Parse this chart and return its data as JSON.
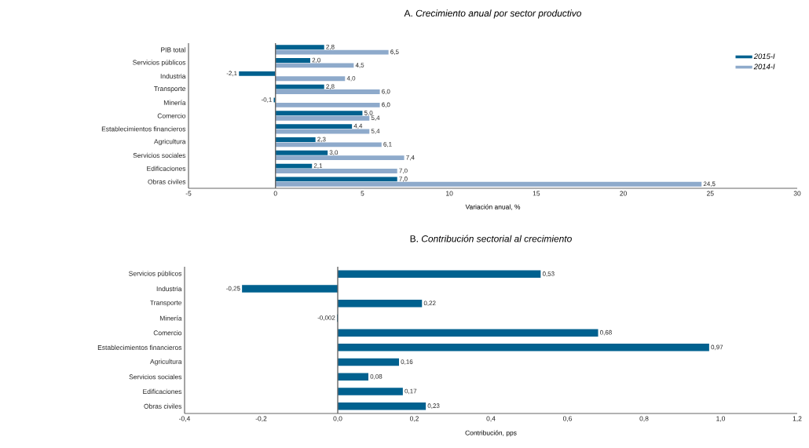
{
  "chart_data": [
    {
      "type": "bar",
      "orientation": "horizontal",
      "title": "A. *Crecimiento anual por sector productivo*",
      "xlabel": "Variación anual, %",
      "categories": [
        "PIB total",
        "Servicios públicos",
        "Industria",
        "Transporte",
        "Minería",
        "Comercio",
        "Establecimientos financieros",
        "Agricultura",
        "Servicios sociales",
        "Edificaciones",
        "Obras civiles"
      ],
      "series": [
        {
          "name": "2015-I",
          "color": "#00618f",
          "values": [
            2.8,
            2.0,
            -2.1,
            2.8,
            -0.1,
            5.0,
            4.4,
            2.3,
            3.0,
            2.1,
            7.0
          ],
          "value_labels": [
            "2,8",
            "2,0",
            "-2,1",
            "2,8",
            "-0,1",
            "5,0",
            "4,4",
            "2,3",
            "3,0",
            "2,1",
            "7,0"
          ]
        },
        {
          "name": "2014-I",
          "color": "#8eaacb",
          "values": [
            6.5,
            4.5,
            4.0,
            6.0,
            6.0,
            5.4,
            5.4,
            6.1,
            7.4,
            7.0,
            24.5
          ],
          "value_labels": [
            "6,5",
            "4,5",
            "4,0",
            "6,0",
            "6,0",
            "5,4",
            "5,4",
            "6,1",
            "7,4",
            "7,0",
            "24,5"
          ]
        }
      ],
      "xlim": [
        -5,
        30
      ],
      "xticks": [
        -5,
        0,
        5,
        10,
        15,
        20,
        25,
        30
      ],
      "legend": "top right",
      "grid": false,
      "ref_lines": [
        {
          "axis": "x",
          "value": 0
        }
      ]
    },
    {
      "type": "bar",
      "orientation": "horizontal",
      "title": "B. *Contribución sectorial al crecimiento*",
      "xlabel": "Contribución, pps",
      "categories": [
        "Servicios públicos",
        "Industria",
        "Transporte",
        "Minería",
        "Comercio",
        "Establecimientos financieros",
        "Agricultura",
        "Servicios sociales",
        "Edificaciones",
        "Obras civiles"
      ],
      "series": [
        {
          "color": "#00618f",
          "values": [
            0.53,
            -0.25,
            0.22,
            -0.002,
            0.68,
            0.97,
            0.16,
            0.08,
            0.17,
            0.23
          ],
          "value_labels": [
            "0,53",
            "-0,25",
            "0,22",
            "-0,002",
            "0,68",
            "0,97",
            "0,16",
            "0,08",
            "0,17",
            "0,23"
          ]
        }
      ],
      "xlim": [
        -0.4,
        1.2
      ],
      "xticks": [
        {
          "value": -0.4,
          "label": "-0,4"
        },
        {
          "value": -0.2,
          "label": "-0,2"
        },
        {
          "value": 0,
          "label": "0,0"
        },
        {
          "value": 0.2,
          "label": "0,2"
        },
        {
          "value": 0.4,
          "label": "0,4"
        },
        {
          "value": 0.6,
          "label": "0,6"
        },
        {
          "value": 0.8,
          "label": "0,8"
        },
        {
          "value": 1.0,
          "label": "1,0"
        },
        {
          "value": 1.2,
          "label": "1,2"
        }
      ],
      "grid": false,
      "ref_lines": [
        {
          "axis": "x",
          "value": 0
        }
      ]
    }
  ]
}
